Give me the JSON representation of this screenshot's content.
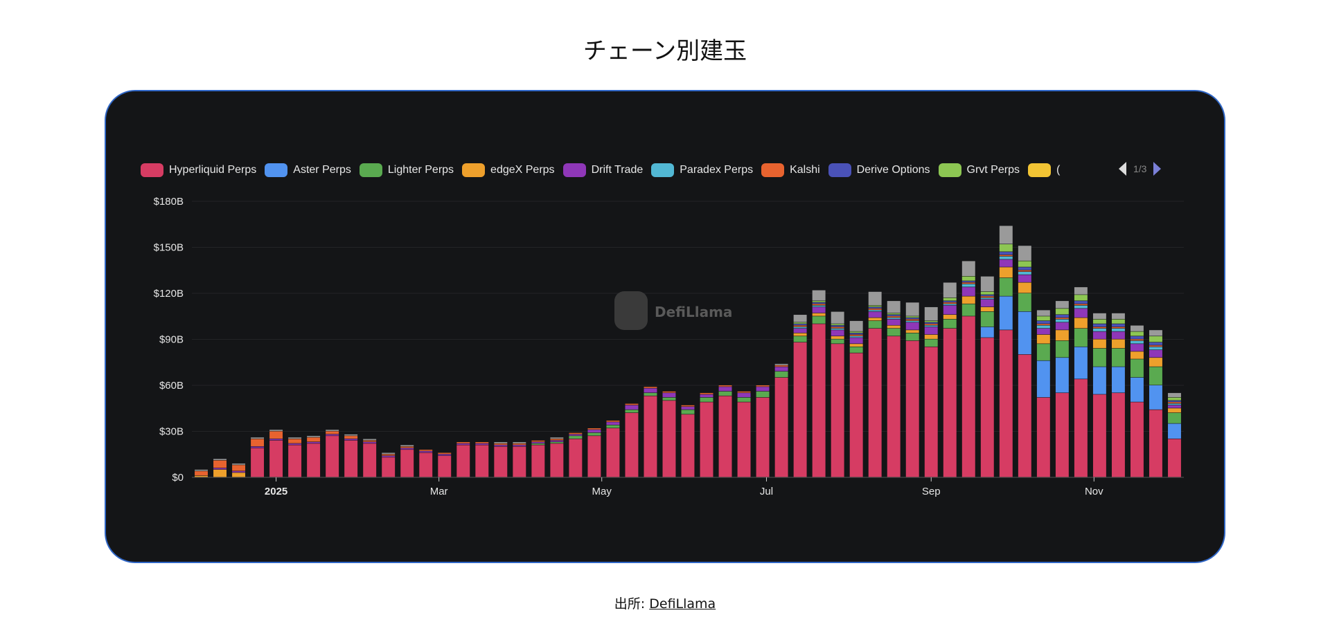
{
  "title": "チェーン別建玉",
  "source": {
    "label": "出所:",
    "link_text": "DefiLlama"
  },
  "watermark": "DefiLlama",
  "legend_pager": {
    "page": "1/3"
  },
  "chart_data": {
    "type": "bar",
    "stacked": true,
    "title": "チェーン別建玉",
    "ylim": [
      0,
      180
    ],
    "yunit": "B USD",
    "yticks": [
      "$0",
      "$30B",
      "$60B",
      "$90B",
      "$120B",
      "$150B",
      "$180B"
    ],
    "ytick_values": [
      0,
      30,
      60,
      90,
      120,
      150,
      180
    ],
    "xticks": [
      {
        "label": "2025",
        "at": 4,
        "bold": true
      },
      {
        "label": "Mar",
        "at": 12.7,
        "bold": false
      },
      {
        "label": "May",
        "at": 21.4,
        "bold": false
      },
      {
        "label": "Jul",
        "at": 30.2,
        "bold": false
      },
      {
        "label": "Sep",
        "at": 39,
        "bold": false
      },
      {
        "label": "Nov",
        "at": 47.7,
        "bold": false
      }
    ],
    "legend": [
      {
        "name": "Hyperliquid Perps",
        "color": "#d63c63"
      },
      {
        "name": "Aster Perps",
        "color": "#5193f0"
      },
      {
        "name": "Lighter Perps",
        "color": "#5aaa50"
      },
      {
        "name": "edgeX Perps",
        "color": "#eea02c"
      },
      {
        "name": "Drift Trade",
        "color": "#8f37b8"
      },
      {
        "name": "Paradex Perps",
        "color": "#52b8d4"
      },
      {
        "name": "Kalshi",
        "color": "#e8632f"
      },
      {
        "name": "Derive Options",
        "color": "#4a52b8"
      },
      {
        "name": "Grvt Perps",
        "color": "#8dc653"
      },
      {
        "name": "(",
        "color": "#f2c434"
      }
    ],
    "other_color": "#9a9a9a",
    "series": [
      {
        "key": "hyperliquid",
        "values": [
          0,
          0,
          0,
          19,
          24,
          21,
          22,
          27,
          24,
          22,
          13,
          18,
          16,
          14,
          21,
          21,
          20,
          20,
          21,
          22,
          25,
          27,
          32,
          42,
          53,
          50,
          41,
          49,
          53,
          49,
          52,
          65,
          88,
          100,
          87,
          81,
          97,
          92,
          89,
          85,
          97,
          105,
          91,
          96,
          80,
          52,
          55,
          64,
          54,
          55,
          49,
          44,
          25
        ]
      },
      {
        "key": "aster",
        "values": [
          0,
          0,
          0,
          0,
          0,
          0,
          0,
          0,
          0,
          0,
          0,
          0,
          0,
          0,
          0,
          0,
          0,
          0,
          0,
          0,
          0,
          0,
          0,
          0,
          0,
          0,
          0,
          0,
          0,
          0,
          0,
          0,
          0,
          0,
          0,
          0,
          0,
          0,
          0,
          0,
          0,
          0,
          7,
          22,
          28,
          24,
          23,
          21,
          18,
          17,
          16,
          16,
          10
        ]
      },
      {
        "key": "lighter",
        "values": [
          0,
          0,
          0,
          0,
          0,
          0,
          0,
          0,
          0,
          0,
          0,
          0,
          0,
          0,
          0,
          0,
          0,
          0,
          1,
          1,
          2,
          2,
          2,
          2,
          2,
          2,
          3,
          3,
          3,
          3,
          4,
          4,
          4,
          5,
          3,
          4,
          5,
          5,
          5,
          5,
          6,
          8,
          10,
          12,
          12,
          11,
          11,
          12,
          12,
          12,
          12,
          12,
          7
        ]
      },
      {
        "key": "edgex",
        "values": [
          1,
          5,
          3,
          0,
          0,
          0,
          0,
          0,
          0,
          0,
          0,
          0,
          0,
          0,
          0,
          0,
          0,
          0,
          0,
          0,
          0,
          0,
          0,
          0,
          0,
          0,
          0,
          0,
          0,
          0,
          0,
          0,
          2,
          2,
          2,
          2,
          2,
          2,
          2,
          3,
          3,
          5,
          3,
          7,
          7,
          6,
          7,
          7,
          6,
          6,
          5,
          6,
          3
        ]
      },
      {
        "key": "drift",
        "values": [
          0,
          1,
          1,
          1,
          1,
          1,
          1,
          1,
          1,
          1,
          1,
          1,
          1,
          1,
          1,
          1,
          1,
          1,
          1,
          1,
          1,
          2,
          2,
          3,
          3,
          3,
          2,
          2,
          3,
          3,
          3,
          3,
          3,
          4,
          4,
          4,
          4,
          4,
          5,
          5,
          6,
          6,
          5,
          5,
          5,
          4,
          5,
          6,
          5,
          5,
          5,
          5,
          2
        ]
      },
      {
        "key": "paradex",
        "values": [
          0,
          0,
          0,
          0,
          0,
          0,
          0,
          0,
          0,
          0,
          0,
          0,
          0,
          0,
          0,
          0,
          0,
          0,
          0,
          0,
          0,
          0,
          0,
          0,
          0,
          0,
          0,
          0,
          0,
          0,
          0,
          0,
          1,
          1,
          1,
          1,
          1,
          1,
          1,
          1,
          1,
          2,
          1,
          2,
          2,
          2,
          2,
          2,
          2,
          2,
          2,
          2,
          1
        ]
      },
      {
        "key": "kalshi",
        "values": [
          3,
          5,
          4,
          5,
          5,
          3,
          3,
          2,
          2,
          1,
          1,
          1,
          1,
          1,
          1,
          1,
          1,
          1,
          1,
          1,
          1,
          1,
          1,
          1,
          1,
          1,
          1,
          1,
          1,
          1,
          1,
          1,
          1,
          1,
          1,
          1,
          1,
          1,
          1,
          1,
          1,
          1,
          1,
          1,
          1,
          1,
          1,
          1,
          1,
          1,
          1,
          1,
          1
        ]
      },
      {
        "key": "derive",
        "values": [
          0,
          0,
          0,
          0,
          0,
          0,
          0,
          0,
          0,
          0,
          0,
          0,
          0,
          0,
          0,
          0,
          0,
          0,
          0,
          0,
          0,
          0,
          0,
          0,
          0,
          0,
          0,
          0,
          0,
          0,
          0,
          0,
          1,
          1,
          1,
          1,
          1,
          1,
          1,
          1,
          1,
          1,
          1,
          2,
          2,
          2,
          2,
          2,
          2,
          2,
          2,
          2,
          1
        ]
      },
      {
        "key": "grvt",
        "values": [
          0,
          0,
          0,
          0,
          0,
          0,
          0,
          0,
          0,
          0,
          0,
          0,
          0,
          0,
          0,
          0,
          0,
          0,
          0,
          0,
          0,
          0,
          0,
          0,
          0,
          0,
          0,
          0,
          0,
          0,
          0,
          0,
          1,
          1,
          1,
          1,
          1,
          1,
          1,
          1,
          2,
          3,
          2,
          5,
          4,
          3,
          4,
          4,
          3,
          3,
          3,
          4,
          2
        ]
      },
      {
        "key": "other",
        "values": [
          1,
          1,
          1,
          1,
          1,
          1,
          1,
          1,
          1,
          1,
          1,
          1,
          0,
          0,
          0,
          0,
          1,
          1,
          0,
          1,
          0,
          0,
          0,
          0,
          0,
          0,
          0,
          0,
          0,
          0,
          0,
          1,
          5,
          7,
          8,
          7,
          9,
          8,
          9,
          9,
          10,
          10,
          10,
          12,
          10,
          4,
          5,
          5,
          4,
          4,
          4,
          4,
          3
        ]
      }
    ]
  }
}
